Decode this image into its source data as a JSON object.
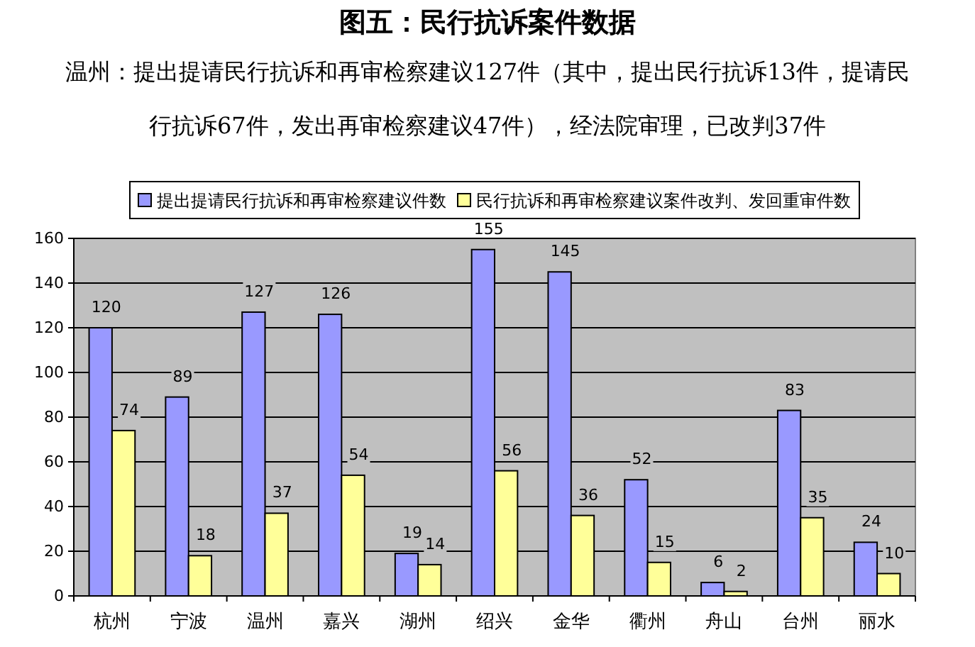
{
  "chart_data": {
    "type": "bar",
    "title": "图五：民行抗诉案件数据",
    "subtitle": "温州：提出提请民行抗诉和再审检察建议127件（其中，提出民行抗诉13件，提请民行抗诉67件，发出再审检察建议47件），经法院审理，已改判37件",
    "categories": [
      "杭州",
      "宁波",
      "温州",
      "嘉兴",
      "湖州",
      "绍兴",
      "金华",
      "衢州",
      "舟山",
      "台州",
      "丽水"
    ],
    "series": [
      {
        "name": "提出提请民行抗诉和再审检察建议件数",
        "color": "#9999ff",
        "values": [
          120,
          89,
          127,
          126,
          19,
          155,
          145,
          52,
          6,
          83,
          24
        ]
      },
      {
        "name": "民行抗诉和再审检察建议案件改判、发回重审件数",
        "color": "#ffff99",
        "values": [
          74,
          18,
          37,
          54,
          14,
          56,
          36,
          15,
          2,
          35,
          10
        ]
      }
    ],
    "ylim": [
      0,
      160
    ],
    "yticks": [
      0,
      20,
      40,
      60,
      80,
      100,
      120,
      140,
      160
    ],
    "grid": "y",
    "legend": "top",
    "data_labels": true
  }
}
